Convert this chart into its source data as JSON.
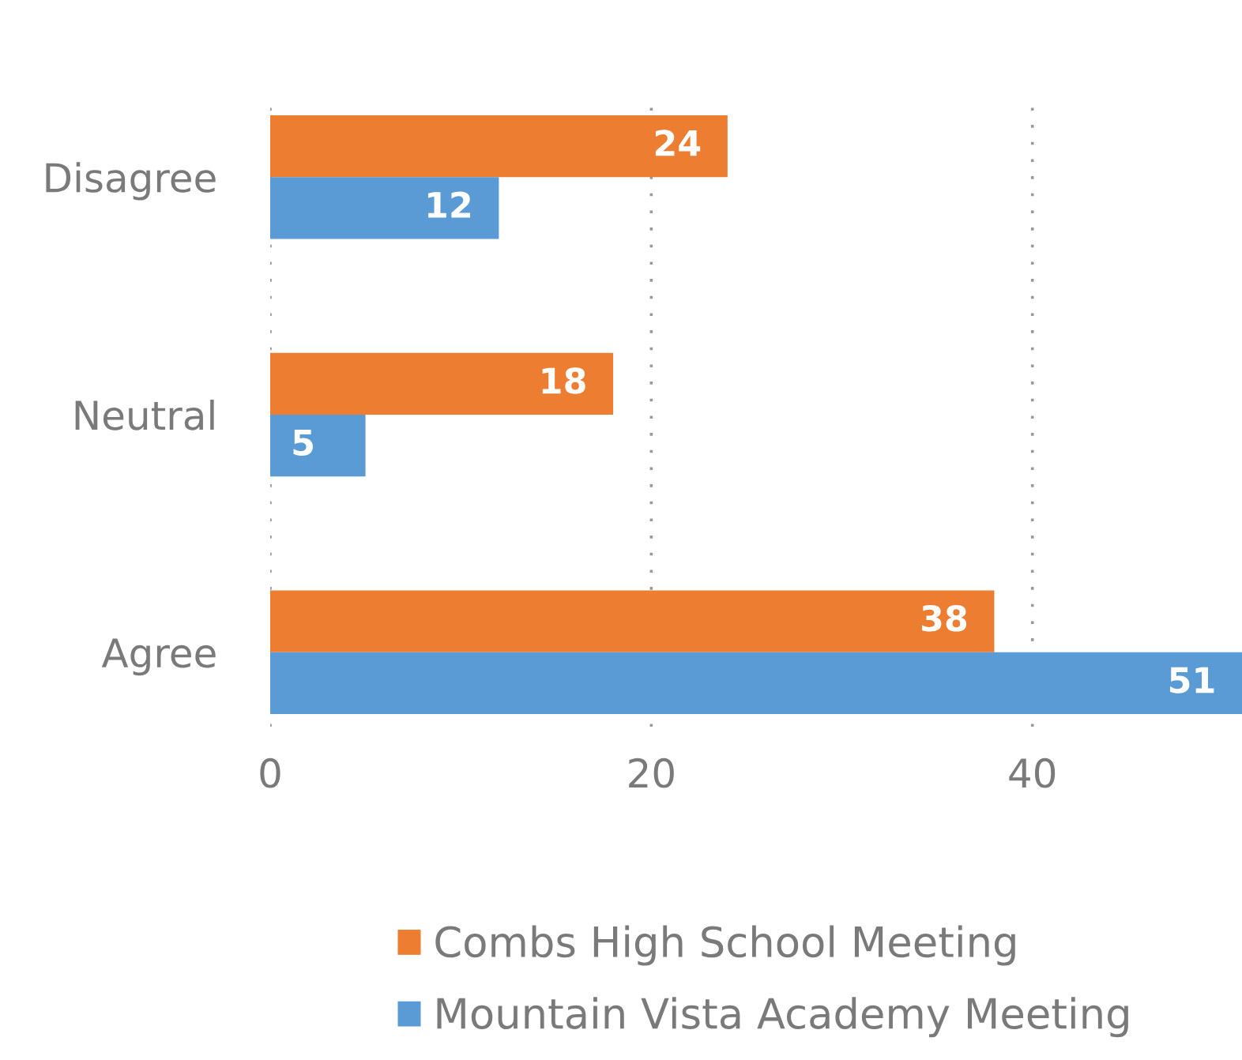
{
  "chart_data": {
    "type": "bar",
    "orientation": "horizontal",
    "categories": [
      "Disagree",
      "Neutral",
      "Agree"
    ],
    "series": [
      {
        "name": "Combs High School Meeting",
        "color": "#ed7d31",
        "values": [
          24,
          18,
          38
        ]
      },
      {
        "name": "Mountain Vista Academy Meeting",
        "color": "#5b9bd5",
        "values": [
          12,
          5,
          51
        ]
      }
    ],
    "xlim": [
      0,
      51
    ],
    "xticks": [
      0,
      20,
      40
    ],
    "grid": "x",
    "legend": "bottom",
    "data_labels": true
  }
}
